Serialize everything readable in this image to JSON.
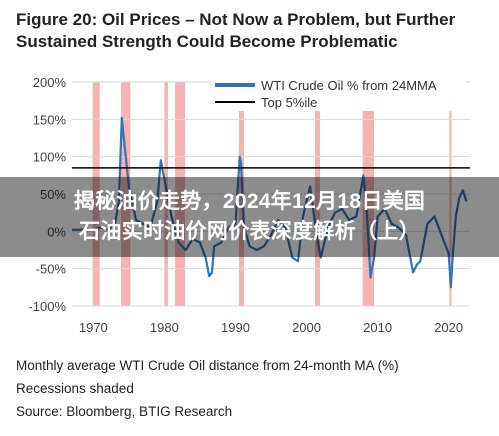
{
  "figure": {
    "title_line1": "Figure 20: Oil Prices – Not Now a Problem, but Further",
    "title_line2": "Sustained Strength Could Become Problematic"
  },
  "overlay": {
    "line1": "揭秘油价走势，2024年12月18日美国",
    "line2": "石油实时油价网价表深度解析（上）"
  },
  "captions": {
    "desc": "Monthly average WTI Crude Oil distance from 24-month MA (%)",
    "recessions": "Recessions shaded",
    "source": "Source: Bloomberg, BTIG Research"
  },
  "colors": {
    "series": "#2e75b6",
    "threshold": "#000000",
    "recession": "#f4a6a6"
  },
  "chart_data": {
    "type": "line",
    "title": "Figure 20: Oil Prices – Not Now a Problem, but Further Sustained Strength Could Become Problematic",
    "xlabel": "",
    "ylabel": "",
    "xlim": [
      1967,
      2023
    ],
    "ylim": [
      -100,
      200
    ],
    "x_ticks": [
      1970,
      1980,
      1990,
      2000,
      2010,
      2020
    ],
    "y_ticks": [
      -100,
      -50,
      0,
      50,
      100,
      150,
      200
    ],
    "y_tick_labels": [
      "-100%",
      "-50%",
      "0%",
      "50%",
      "100%",
      "150%",
      "200%"
    ],
    "grid": "horizontal",
    "legend_placement": "top-right",
    "recessions": [
      [
        1969.9,
        1970.9
      ],
      [
        1973.9,
        1975.2
      ],
      [
        1980.0,
        1980.5
      ],
      [
        1981.5,
        1982.9
      ],
      [
        1990.5,
        1991.2
      ],
      [
        2001.2,
        2001.9
      ],
      [
        2007.9,
        2009.5
      ],
      [
        2020.1,
        2020.4
      ]
    ],
    "series": [
      {
        "name": "WTI Crude Oil % from 24MMA",
        "x": [
          1967.0,
          1968.0,
          1969.0,
          1970.0,
          1971.0,
          1972.0,
          1973.0,
          1973.6,
          1974.0,
          1974.4,
          1975.0,
          1976.0,
          1977.0,
          1978.0,
          1979.0,
          1979.5,
          1980.0,
          1981.0,
          1982.0,
          1983.0,
          1984.0,
          1985.0,
          1985.8,
          1986.3,
          1986.7,
          1987.0,
          1988.0,
          1989.0,
          1990.0,
          1990.6,
          1990.8,
          1991.2,
          1992.0,
          1993.0,
          1994.0,
          1995.0,
          1996.0,
          1997.0,
          1998.0,
          1998.8,
          1999.5,
          2000.0,
          2000.5,
          2001.5,
          2002.0,
          2003.0,
          2004.0,
          2005.0,
          2006.0,
          2007.0,
          2008.0,
          2008.5,
          2009.0,
          2009.5,
          2010.0,
          2011.0,
          2012.0,
          2013.0,
          2014.0,
          2015.0,
          2015.5,
          2016.0,
          2017.0,
          2018.0,
          2019.0,
          2020.0,
          2020.3,
          2020.6,
          2021.0,
          2021.5,
          2022.0,
          2022.5
        ],
        "values": [
          2,
          2,
          3,
          2,
          5,
          3,
          8,
          40,
          152,
          115,
          60,
          15,
          10,
          5,
          40,
          95,
          70,
          20,
          -15,
          -25,
          -10,
          -15,
          -35,
          -60,
          -55,
          -20,
          -15,
          5,
          10,
          100,
          90,
          5,
          -20,
          -25,
          -20,
          -5,
          15,
          5,
          -35,
          -40,
          20,
          40,
          60,
          -10,
          -35,
          5,
          25,
          30,
          15,
          20,
          75,
          25,
          -62,
          -35,
          20,
          30,
          10,
          5,
          -5,
          -55,
          -45,
          -40,
          10,
          20,
          -5,
          -30,
          -75,
          -30,
          20,
          45,
          55,
          40
        ]
      },
      {
        "name": "Top 5%ile",
        "x": [
          1967,
          2023
        ],
        "values": [
          85,
          85
        ]
      }
    ]
  }
}
